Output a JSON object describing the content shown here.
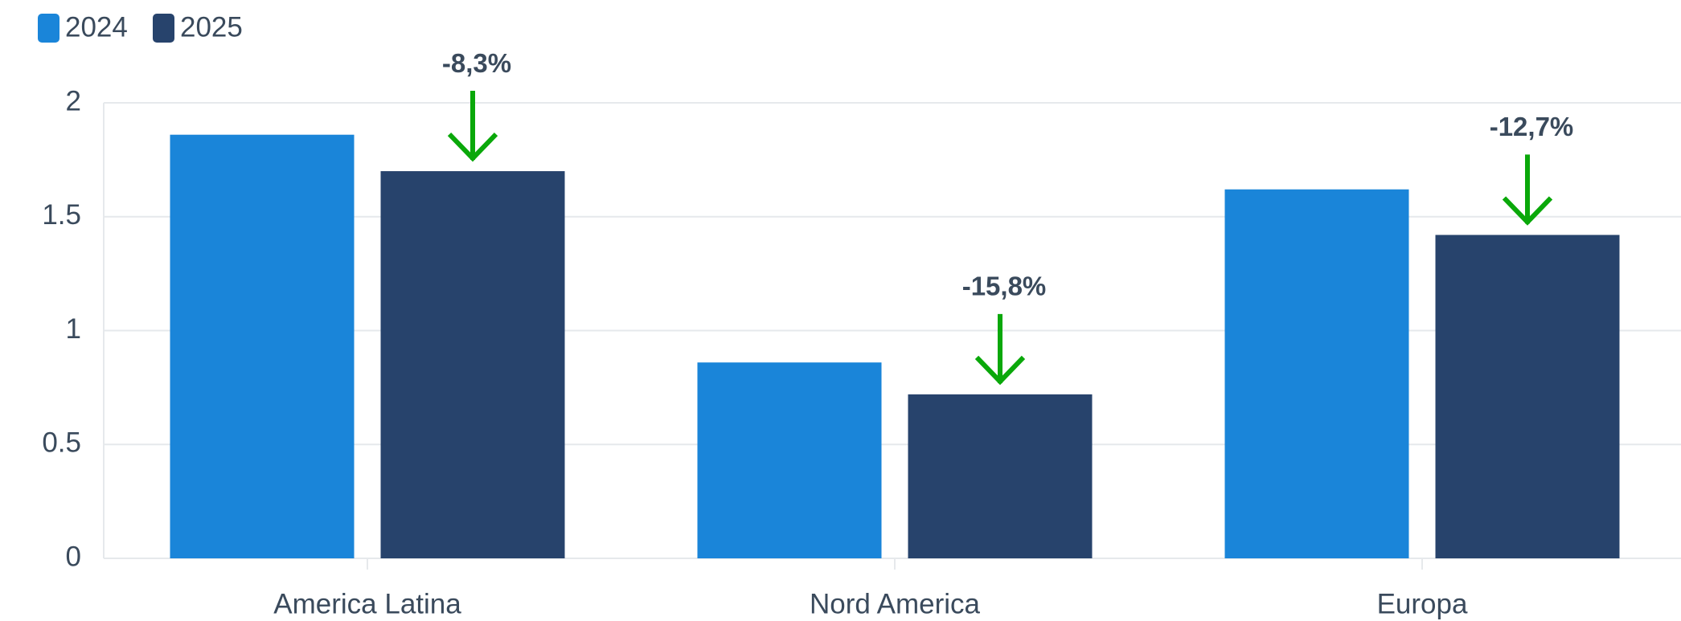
{
  "chart_data": {
    "type": "bar",
    "categories": [
      "America Latina",
      "Nord America",
      "Europa"
    ],
    "series": [
      {
        "name": "2024",
        "color": "#1a85d9",
        "values": [
          1.86,
          0.86,
          1.62
        ]
      },
      {
        "name": "2025",
        "color": "#27436c",
        "values": [
          1.7,
          0.72,
          1.42
        ]
      }
    ],
    "annotations": [
      "-8,3%",
      "-15,8%",
      "-12,7%"
    ],
    "annotation_color": "#0aa80a",
    "ylim": [
      0,
      2
    ],
    "yticks": [
      0,
      0.5,
      1,
      1.5,
      2
    ],
    "grid": true
  }
}
